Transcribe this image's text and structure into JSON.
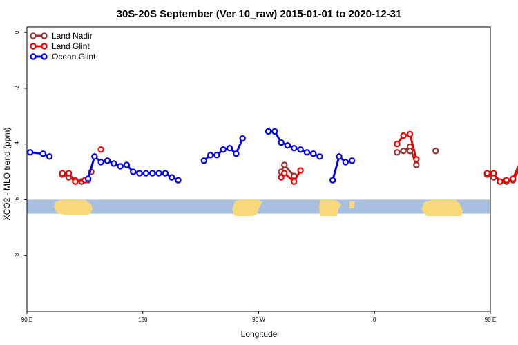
{
  "chart_data": {
    "type": "line",
    "title": "30S-20S September (Ver 10_raw)   2015-01-01 to 2020-12-31",
    "xlabel": "Longitude",
    "ylabel": "XCO2 - MLO trend (ppm)",
    "xlim": [
      90,
      450
    ],
    "ylim": [
      -10,
      0.2
    ],
    "x_ticks": [
      {
        "value": 90,
        "label": "90 E"
      },
      {
        "value": 180,
        "label": "180"
      },
      {
        "value": 270,
        "label": "90 W"
      },
      {
        "value": 360,
        "label": "0"
      },
      {
        "value": 450,
        "label": "90 E"
      },
      {
        "value": 540,
        "label": "180"
      }
    ],
    "y_ticks": [
      {
        "value": 0,
        "label": "0"
      },
      {
        "value": -2,
        "label": "-2"
      },
      {
        "value": -4,
        "label": "-4"
      },
      {
        "value": -6,
        "label": "-6"
      },
      {
        "value": -8,
        "label": "-8"
      }
    ],
    "legend_position": "top-left",
    "grid": false,
    "series": [
      {
        "name": "Land Nadir",
        "color": "#993333",
        "segments": [
          [
            [
              117.5,
              -5.1
            ],
            [
              122.5,
              -5.2
            ],
            [
              127.5,
              -5.3
            ],
            [
              132.5,
              -5.35
            ],
            [
              137.5,
              -5.3
            ]
          ],
          [
            [
              140,
              -5.0
            ]
          ],
          [
            [
              287.5,
              -5.0
            ],
            [
              290,
              -4.75
            ],
            [
              297.5,
              -5.15
            ]
          ],
          [
            [
              377.5,
              -4.3
            ],
            [
              382.5,
              -4.25
            ],
            [
              387.5,
              -4.1
            ],
            [
              392.5,
              -4.75
            ]
          ],
          [
            [
              407.5,
              -4.25
            ]
          ],
          [
            [
              387.5,
              -4.25
            ]
          ],
          [
            [
              447.5,
              -5.1
            ],
            [
              452.5,
              -5.2
            ],
            [
              462.5,
              -5.35
            ],
            [
              467.5,
              -5.3
            ],
            [
              472.5,
              -4.9
            ]
          ]
        ]
      },
      {
        "name": "Land Glint",
        "color": "#ee0000",
        "segments": [
          [
            [
              117.5,
              -5.05
            ],
            [
              122.5,
              -5.05
            ],
            [
              127.5,
              -5.35
            ],
            [
              135,
              -5.3
            ],
            [
              137.5,
              -5.25
            ]
          ],
          [
            [
              147.5,
              -4.2
            ]
          ],
          [
            [
              287.5,
              -5.2
            ],
            [
              290,
              -5.05
            ],
            [
              297.5,
              -5.35
            ],
            [
              302.5,
              -4.95
            ]
          ],
          [
            [
              377.5,
              -4.0
            ],
            [
              382.5,
              -3.7
            ],
            [
              387.5,
              -3.65
            ],
            [
              392.5,
              -4.55
            ]
          ],
          [
            [
              447.5,
              -5.05
            ],
            [
              452.5,
              -5.05
            ],
            [
              457.5,
              -5.35
            ],
            [
              462.5,
              -5.3
            ],
            [
              467.5,
              -5.25
            ],
            [
              477.5,
              -4.2
            ]
          ]
        ]
      },
      {
        "name": "Ocean Glint",
        "color": "#0000ee",
        "segments": [
          [
            [
              92.5,
              -4.3
            ],
            [
              102.5,
              -4.35
            ],
            [
              107.5,
              -4.45
            ]
          ],
          [
            [
              137.5,
              -5.25
            ],
            [
              142.5,
              -4.45
            ],
            [
              147.5,
              -4.65
            ],
            [
              152.5,
              -4.6
            ],
            [
              157.5,
              -4.7
            ],
            [
              162.5,
              -4.8
            ],
            [
              167.5,
              -4.75
            ],
            [
              172.5,
              -5.0
            ],
            [
              177.5,
              -5.05
            ],
            [
              182.5,
              -5.05
            ],
            [
              187.5,
              -5.05
            ],
            [
              192.5,
              -5.05
            ],
            [
              197.5,
              -5.05
            ],
            [
              202.5,
              -5.2
            ],
            [
              207.5,
              -5.3
            ]
          ],
          [
            [
              227.5,
              -4.6
            ],
            [
              232.5,
              -4.4
            ],
            [
              237.5,
              -4.4
            ],
            [
              242.5,
              -4.2
            ],
            [
              247.5,
              -4.15
            ],
            [
              252.5,
              -4.35
            ],
            [
              257.5,
              -3.8
            ]
          ],
          [
            [
              277.5,
              -3.55
            ],
            [
              282.5,
              -3.55
            ],
            [
              287.5,
              -3.95
            ],
            [
              292.5,
              -4.05
            ],
            [
              297.5,
              -4.15
            ],
            [
              302.5,
              -4.2
            ],
            [
              307.5,
              -4.3
            ],
            [
              312.5,
              -4.35
            ],
            [
              317.5,
              -4.45
            ]
          ],
          [
            [
              327.5,
              -5.3
            ],
            [
              332.5,
              -4.45
            ],
            [
              337.5,
              -4.65
            ],
            [
              342.5,
              -4.6
            ]
          ]
        ]
      }
    ],
    "map_strip": {
      "y_range": [
        -6.5,
        -6.0
      ],
      "ocean_color": "#a9bfdf",
      "land_color": "#f8d97a"
    }
  }
}
